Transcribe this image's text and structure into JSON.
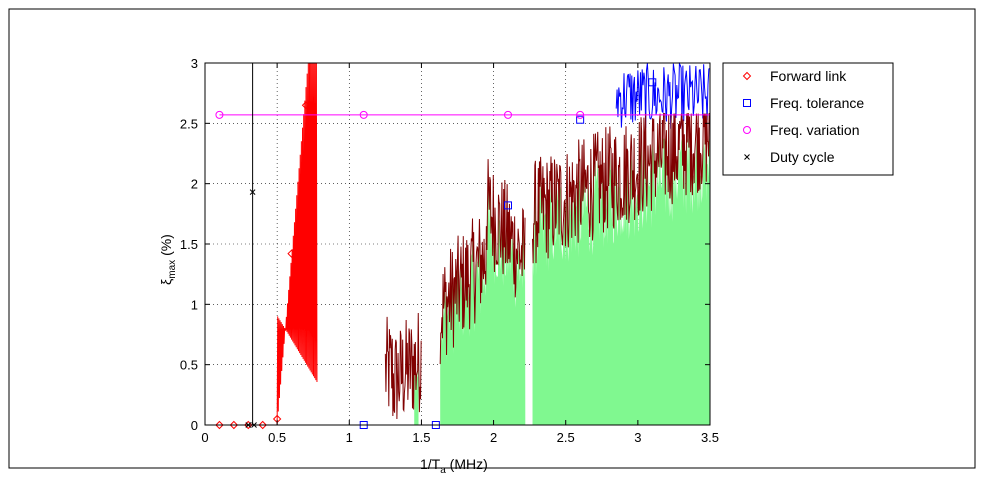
{
  "chart_data": {
    "type": "line",
    "xlabel": "1/T",
    "xlabel_sub": "a",
    "xlabel_unit": " (MHz)",
    "ylabel": "ξ",
    "ylabel_sub": "max",
    "ylabel_unit": " (%)",
    "xlim": [
      0,
      3.5
    ],
    "ylim": [
      0,
      3
    ],
    "xticks": [
      0,
      0.5,
      1,
      1.5,
      2,
      2.5,
      3,
      3.5
    ],
    "xtick_labels": [
      "0",
      "0.5",
      "1",
      "1.5",
      "2",
      "2.5",
      "3",
      "3.5"
    ],
    "yticks": [
      0,
      0.5,
      1,
      1.5,
      2,
      2.5,
      3
    ],
    "ytick_labels": [
      "0",
      "0.5",
      "1",
      "1.5",
      "2",
      "2.5",
      "3"
    ],
    "grid": true,
    "legend_position": "outside-right-top",
    "series": [
      {
        "name": "Forward link",
        "marker": "diamond",
        "color": "#ff0000",
        "x": [
          0.1,
          0.2,
          0.3,
          0.4,
          0.5,
          0.6,
          0.7
        ],
        "y": [
          0,
          0,
          0,
          0,
          0.05,
          1.42,
          2.65
        ]
      },
      {
        "name": "Freq. tolerance",
        "marker": "square",
        "color": "#0000ff",
        "x": [
          1.1,
          1.6,
          2.1,
          2.6,
          3.1
        ],
        "y": [
          0,
          0,
          1.82,
          2.53,
          2.84
        ]
      },
      {
        "name": "Freq. variation",
        "marker": "circle",
        "color": "#ff00ff",
        "x": [
          0.1,
          1.1,
          2.1,
          2.6
        ],
        "y": [
          2.57,
          2.57,
          2.57,
          2.57
        ]
      },
      {
        "name": "Duty cycle",
        "marker": "x",
        "color": "#000000",
        "x": [
          0.3,
          0.33,
          0.34
        ],
        "y": [
          0,
          1.93,
          0
        ]
      }
    ],
    "fill_regions": [
      {
        "color": "#80f890",
        "x_start": 1.45,
        "x_end": 1.48
      },
      {
        "color": "#80f890",
        "x_start": 1.63,
        "x_end": 2.22
      },
      {
        "color": "#80f890",
        "x_start": 2.27,
        "x_end": 3.5
      }
    ],
    "envelope_color": "#800000",
    "fill_color": "#80f890"
  }
}
